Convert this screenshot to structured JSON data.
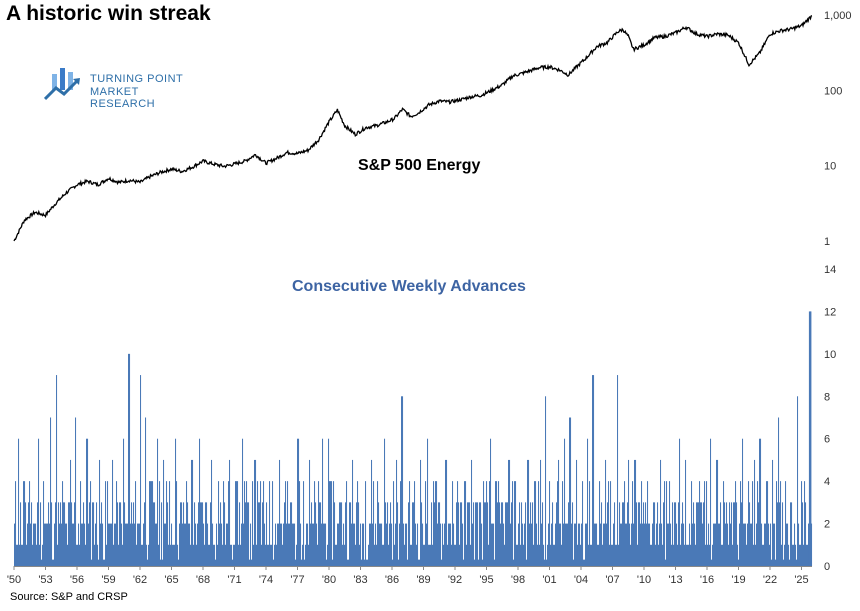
{
  "title": "A historic win streak",
  "logo": {
    "line1": "TURNING POINT",
    "line2": "MARKET RESEARCH",
    "icon": "bar-chart-arrow-icon",
    "color": "#3a7bc8"
  },
  "source": "Source: S&P and CRSP",
  "chart_data": [
    {
      "type": "line",
      "series": [
        {
          "name": "S&P 500 Energy"
        }
      ],
      "yscale": "log",
      "ylim": [
        1,
        1000
      ],
      "yticks": [
        "1",
        "10",
        "100",
        "1,000"
      ],
      "xrange": [
        1950,
        2026
      ],
      "line_color": "#000000",
      "points": [
        [
          1950.0,
          1
        ],
        [
          1951.0,
          1.9
        ],
        [
          1952.0,
          2.4
        ],
        [
          1953.0,
          2.2
        ],
        [
          1954.0,
          3.2
        ],
        [
          1955.0,
          4.4
        ],
        [
          1956.0,
          5.6
        ],
        [
          1957.0,
          6.2
        ],
        [
          1958.0,
          5.6
        ],
        [
          1959.0,
          6.8
        ],
        [
          1960.0,
          6.0
        ],
        [
          1961.0,
          6.4
        ],
        [
          1962.0,
          6.0
        ],
        [
          1963.0,
          7.2
        ],
        [
          1964.0,
          8.2
        ],
        [
          1965.0,
          9.0
        ],
        [
          1966.0,
          8.4
        ],
        [
          1967.0,
          9.6
        ],
        [
          1968.0,
          11.5
        ],
        [
          1969.0,
          10.5
        ],
        [
          1970.0,
          9.8
        ],
        [
          1971.0,
          10.5
        ],
        [
          1972.0,
          11.5
        ],
        [
          1973.0,
          14.0
        ],
        [
          1974.0,
          10.8
        ],
        [
          1975.0,
          12.5
        ],
        [
          1976.0,
          15.0
        ],
        [
          1977.0,
          14.5
        ],
        [
          1978.0,
          16.0
        ],
        [
          1979.0,
          22.0
        ],
        [
          1980.0,
          38.0
        ],
        [
          1980.8,
          55.0
        ],
        [
          1981.5,
          34.0
        ],
        [
          1982.5,
          26.0
        ],
        [
          1983.5,
          32.0
        ],
        [
          1984.5,
          34.0
        ],
        [
          1985.5,
          38.0
        ],
        [
          1986.2,
          42.0
        ],
        [
          1987.0,
          56.0
        ],
        [
          1987.8,
          45.0
        ],
        [
          1988.5,
          50.0
        ],
        [
          1989.5,
          64.0
        ],
        [
          1990.5,
          72.0
        ],
        [
          1991.5,
          70.0
        ],
        [
          1992.5,
          75.0
        ],
        [
          1993.5,
          82.0
        ],
        [
          1994.5,
          86.0
        ],
        [
          1995.5,
          100.0
        ],
        [
          1996.5,
          118.0
        ],
        [
          1997.5,
          155.0
        ],
        [
          1998.5,
          170.0
        ],
        [
          1999.3,
          185.0
        ],
        [
          2000.0,
          200.0
        ],
        [
          2001.0,
          205.0
        ],
        [
          2002.0,
          185.0
        ],
        [
          2002.8,
          160.0
        ],
        [
          2003.5,
          200.0
        ],
        [
          2004.5,
          270.0
        ],
        [
          2005.5,
          380.0
        ],
        [
          2006.5,
          430.0
        ],
        [
          2007.5,
          600.0
        ],
        [
          2008.0,
          640.0
        ],
        [
          2008.5,
          520.0
        ],
        [
          2009.0,
          350.0
        ],
        [
          2010.0,
          400.0
        ],
        [
          2011.0,
          500.0
        ],
        [
          2012.0,
          520.0
        ],
        [
          2013.0,
          580.0
        ],
        [
          2014.0,
          690.0
        ],
        [
          2015.0,
          560.0
        ],
        [
          2016.0,
          520.0
        ],
        [
          2017.0,
          560.0
        ],
        [
          2018.0,
          540.0
        ],
        [
          2019.0,
          430.0
        ],
        [
          2020.0,
          220.0
        ],
        [
          2021.0,
          310.0
        ],
        [
          2022.0,
          560.0
        ],
        [
          2023.0,
          620.0
        ],
        [
          2024.0,
          650.0
        ],
        [
          2025.0,
          720.0
        ],
        [
          2026.0,
          980.0
        ]
      ]
    },
    {
      "type": "bar",
      "title": "Consecutive Weekly Advances",
      "ylim": [
        0,
        14
      ],
      "yticks": [
        0,
        2,
        4,
        6,
        8,
        10,
        12,
        14
      ],
      "bar_color": "#4a79b7",
      "x_tick_labels": [
        "'50",
        "'53",
        "'56",
        "'59",
        "'62",
        "'65",
        "'68",
        "'71",
        "'74",
        "'77",
        "'80",
        "'83",
        "'86",
        "'89",
        "'92",
        "'95",
        "'98",
        "'01",
        "'04",
        "'07",
        "'10",
        "'13",
        "'16",
        "'19",
        "'22",
        "'25"
      ],
      "xrange": [
        1950,
        2026
      ],
      "peaks": [
        [
          1950.4,
          6
        ],
        [
          1950.9,
          4
        ],
        [
          1951.6,
          3
        ],
        [
          1952.3,
          6
        ],
        [
          1952.8,
          4
        ],
        [
          1953.4,
          7
        ],
        [
          1954.0,
          9
        ],
        [
          1954.6,
          4
        ],
        [
          1955.3,
          5
        ],
        [
          1955.8,
          7
        ],
        [
          1956.3,
          4
        ],
        [
          1956.9,
          6
        ],
        [
          1957.4,
          3
        ],
        [
          1958.1,
          5
        ],
        [
          1958.7,
          4
        ],
        [
          1959.3,
          5
        ],
        [
          1959.8,
          3
        ],
        [
          1960.4,
          6
        ],
        [
          1960.9,
          10
        ],
        [
          1961.3,
          3
        ],
        [
          1962.0,
          9
        ],
        [
          1962.5,
          7
        ],
        [
          1963.1,
          4
        ],
        [
          1963.6,
          6
        ],
        [
          1964.2,
          5
        ],
        [
          1964.8,
          4
        ],
        [
          1965.3,
          6
        ],
        [
          1965.8,
          3
        ],
        [
          1966.4,
          4
        ],
        [
          1966.9,
          5
        ],
        [
          1967.6,
          6
        ],
        [
          1968.2,
          3
        ],
        [
          1968.8,
          5
        ],
        [
          1969.4,
          4
        ],
        [
          1970.0,
          3
        ],
        [
          1970.5,
          5
        ],
        [
          1971.1,
          4
        ],
        [
          1971.7,
          6
        ],
        [
          1972.3,
          3
        ],
        [
          1972.9,
          5
        ],
        [
          1973.4,
          4
        ],
        [
          1974.0,
          3
        ],
        [
          1974.6,
          4
        ],
        [
          1975.2,
          5
        ],
        [
          1975.8,
          4
        ],
        [
          1976.4,
          3
        ],
        [
          1977.0,
          6
        ],
        [
          1977.5,
          4
        ],
        [
          1978.1,
          5
        ],
        [
          1978.7,
          3
        ],
        [
          1979.3,
          6
        ],
        [
          1979.9,
          6
        ],
        [
          1980.4,
          4
        ],
        [
          1981.0,
          3
        ],
        [
          1981.6,
          4
        ],
        [
          1982.2,
          5
        ],
        [
          1982.8,
          3
        ],
        [
          1983.4,
          4
        ],
        [
          1984.0,
          5
        ],
        [
          1984.6,
          4
        ],
        [
          1985.2,
          6
        ],
        [
          1985.8,
          3
        ],
        [
          1986.4,
          5
        ],
        [
          1986.9,
          8
        ],
        [
          1987.5,
          3
        ],
        [
          1988.1,
          4
        ],
        [
          1988.7,
          5
        ],
        [
          1989.3,
          6
        ],
        [
          1989.9,
          4
        ],
        [
          1990.5,
          3
        ],
        [
          1991.1,
          5
        ],
        [
          1991.7,
          4
        ],
        [
          1992.3,
          3
        ],
        [
          1992.9,
          4
        ],
        [
          1993.5,
          5
        ],
        [
          1994.1,
          3
        ],
        [
          1994.7,
          4
        ],
        [
          1995.3,
          6
        ],
        [
          1995.9,
          4
        ],
        [
          1996.5,
          3
        ],
        [
          1997.1,
          5
        ],
        [
          1997.7,
          4
        ],
        [
          1998.3,
          3
        ],
        [
          1998.9,
          5
        ],
        [
          1999.5,
          4
        ],
        [
          2000.1,
          5
        ],
        [
          2000.6,
          8
        ],
        [
          2001.2,
          3
        ],
        [
          2001.8,
          5
        ],
        [
          2002.4,
          6
        ],
        [
          2002.9,
          7
        ],
        [
          2003.5,
          5
        ],
        [
          2004.1,
          4
        ],
        [
          2004.6,
          6
        ],
        [
          2005.1,
          9
        ],
        [
          2005.7,
          4
        ],
        [
          2006.3,
          5
        ],
        [
          2006.8,
          4
        ],
        [
          2007.4,
          9
        ],
        [
          2007.9,
          3
        ],
        [
          2008.5,
          5
        ],
        [
          2009.1,
          5
        ],
        [
          2009.7,
          4
        ],
        [
          2010.3,
          4
        ],
        [
          2010.9,
          3
        ],
        [
          2011.5,
          5
        ],
        [
          2012.1,
          4
        ],
        [
          2012.7,
          3
        ],
        [
          2013.3,
          6
        ],
        [
          2013.9,
          5
        ],
        [
          2014.5,
          4
        ],
        [
          2015.1,
          3
        ],
        [
          2015.7,
          4
        ],
        [
          2016.3,
          6
        ],
        [
          2016.9,
          5
        ],
        [
          2017.5,
          4
        ],
        [
          2018.1,
          3
        ],
        [
          2018.7,
          4
        ],
        [
          2019.3,
          6
        ],
        [
          2019.9,
          4
        ],
        [
          2020.5,
          5
        ],
        [
          2021.0,
          6
        ],
        [
          2021.6,
          4
        ],
        [
          2022.2,
          5
        ],
        [
          2022.8,
          7
        ],
        [
          2023.4,
          4
        ],
        [
          2024.0,
          3
        ],
        [
          2024.6,
          8
        ],
        [
          2025.2,
          4
        ],
        [
          2025.8,
          12
        ]
      ]
    }
  ]
}
